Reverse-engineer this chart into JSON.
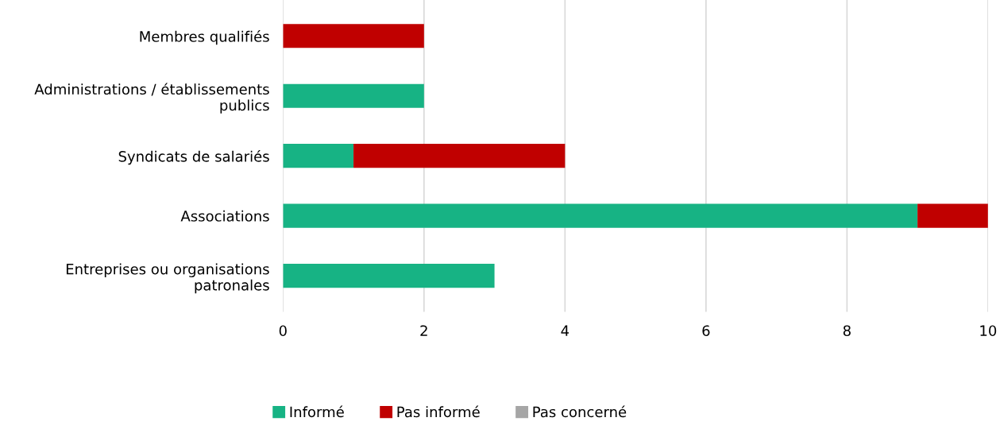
{
  "chart_data": {
    "type": "bar",
    "orientation": "horizontal",
    "stacked": true,
    "categories": [
      "Membres qualifiés",
      "Administrations / établissements\npublics",
      "Syndicats de salariés",
      "Associations",
      "Entreprises ou organisations\npatronales"
    ],
    "series": [
      {
        "name": "Informé",
        "color": "#17b384",
        "values": [
          0,
          2,
          1,
          9,
          3
        ]
      },
      {
        "name": "Pas informé",
        "color": "#c00000",
        "values": [
          2,
          0,
          3,
          1,
          0
        ]
      },
      {
        "name": "Pas concerné",
        "color": "#a6a6a6",
        "values": [
          0,
          0,
          0,
          0,
          0
        ]
      }
    ],
    "xlim": [
      0,
      10
    ],
    "xticks": [
      0,
      2,
      4,
      6,
      8,
      10
    ],
    "grid": "x",
    "legend": "bottom"
  }
}
